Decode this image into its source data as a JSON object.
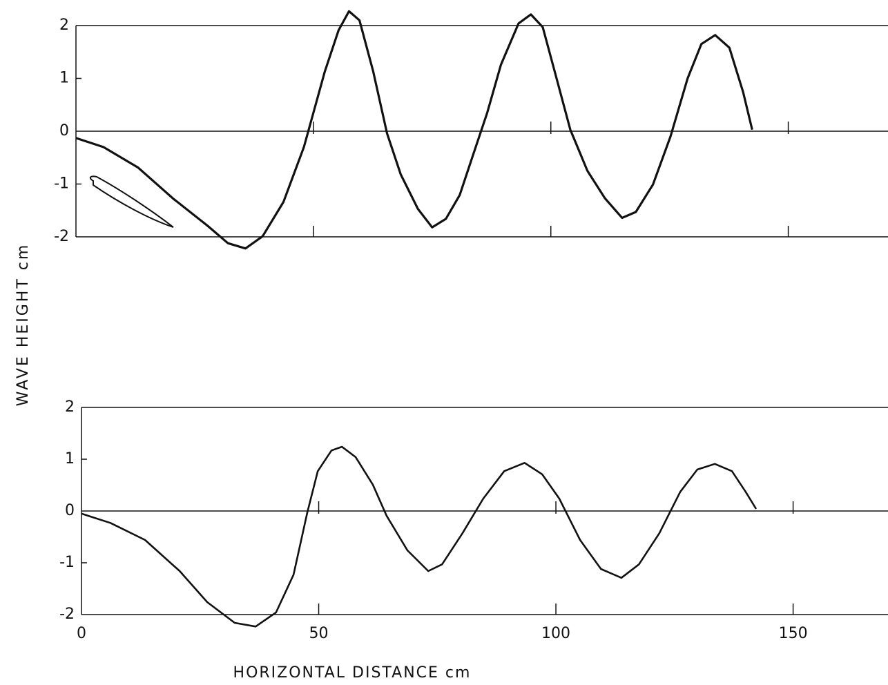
{
  "chart_data": [
    {
      "type": "line",
      "ylabel": "WAVE HEIGHT cm",
      "color": "#111111",
      "xlim": [
        0,
        171
      ],
      "ylim": [
        -2,
        2
      ],
      "yticks": [
        -2,
        -1,
        0,
        1,
        2
      ],
      "x": [
        0,
        5.8,
        13.1,
        20.4,
        27.7,
        32,
        35.7,
        39.3,
        43.7,
        48,
        52.4,
        55.3,
        57.5,
        59.7,
        62.6,
        65.5,
        68.4,
        72,
        75,
        77.9,
        80.8,
        83.7,
        86.6,
        89.5,
        93.2,
        95.8,
        98.3,
        101.2,
        104.1,
        107.7,
        111.4,
        115,
        117.9,
        121.5,
        125.2,
        128.8,
        131.7,
        134.6,
        137.6,
        140.5,
        142.4
      ],
      "values": [
        -0.13,
        -0.3,
        -0.69,
        -1.27,
        -1.79,
        -2.12,
        -2.22,
        -1.99,
        -1.34,
        -0.3,
        1.13,
        1.91,
        2.27,
        2.1,
        1.13,
        -0.04,
        -0.82,
        -1.47,
        -1.82,
        -1.66,
        -1.21,
        -0.43,
        0.35,
        1.26,
        2.04,
        2.21,
        1.97,
        1,
        0.03,
        -0.75,
        -1.27,
        -1.64,
        -1.53,
        -1.01,
        -0.1,
        1,
        1.65,
        1.82,
        1.58,
        0.74,
        0.03
      ]
    },
    {
      "type": "line",
      "xlabel": "HORIZONTAL DISTANCE cm",
      "color": "#111111",
      "xlim": [
        0,
        170
      ],
      "ylim": [
        -2,
        2
      ],
      "yticks": [
        -2,
        -1,
        0,
        1,
        2
      ],
      "xticks": [
        0,
        50,
        100,
        150
      ],
      "x": [
        0,
        6.1,
        13.4,
        20.7,
        26.5,
        32.3,
        36.7,
        41,
        44.7,
        47.6,
        49.8,
        52.7,
        54.9,
        57.8,
        61.4,
        64.3,
        68.7,
        73.1,
        76,
        80.3,
        84.7,
        89.1,
        93.4,
        97.1,
        100.7,
        105.1,
        109.5,
        113.8,
        117.5,
        121.8,
        126.2,
        129.8,
        133.5,
        137.1,
        140,
        142.2
      ],
      "values": [
        -0.05,
        -0.23,
        -0.56,
        -1.16,
        -1.76,
        -2.16,
        -2.23,
        -1.96,
        -1.23,
        -0.03,
        0.77,
        1.17,
        1.24,
        1.04,
        0.51,
        -0.09,
        -0.76,
        -1.16,
        -1.03,
        -0.43,
        0.24,
        0.77,
        0.93,
        0.71,
        0.24,
        -0.56,
        -1.12,
        -1.29,
        -1.03,
        -0.43,
        0.37,
        0.8,
        0.91,
        0.77,
        0.37,
        0.04
      ]
    }
  ]
}
